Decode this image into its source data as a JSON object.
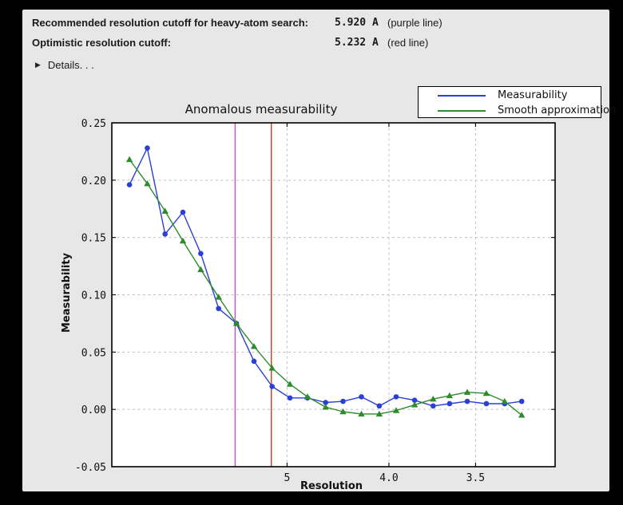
{
  "header": {
    "row1": {
      "label": "Recommended resolution cutoff for heavy-atom search:",
      "value": "5.920 A",
      "note": "(purple line)"
    },
    "row2": {
      "label": "Optimistic resolution cutoff:",
      "value": "5.232 A",
      "note": "(red line)"
    },
    "details": {
      "icon": "right-triangle",
      "icon_glyph": "▶",
      "label": "Details. . ."
    }
  },
  "chart_data": {
    "type": "line",
    "title": "Anomalous measurability",
    "xlabel": "Resolution",
    "ylabel": "Measurability",
    "grid": true,
    "legend_position": "top-right",
    "x_axis": {
      "scale": "1/d^2",
      "unit": "Angstrom",
      "tick_d": [
        5,
        4.0,
        3.5
      ],
      "tick_labels": [
        "5",
        "4.0",
        "3.5"
      ],
      "s_range": [
        0.0013,
        0.0992
      ]
    },
    "y_axis": {
      "range": [
        -0.05,
        0.25
      ],
      "ticks": [
        0.25,
        0.2,
        0.15,
        0.1,
        0.05,
        0.0,
        -0.05
      ],
      "tick_labels": [
        "0.25",
        "0.20",
        "0.15",
        "0.10",
        "0.05",
        "0.00",
        "-0.05"
      ]
    },
    "x_resolution_A": [
      13.87,
      10.46,
      8.75,
      7.67,
      6.91,
      6.34,
      5.89,
      5.53,
      5.22,
      4.96,
      4.74,
      4.54,
      4.37,
      4.21,
      4.07,
      3.95,
      3.83,
      3.72,
      3.63,
      3.54,
      3.45,
      3.37,
      3.3
    ],
    "series": [
      {
        "name": "Measurability",
        "color": "#2a3fd6",
        "marker": "circle",
        "values": [
          0.196,
          0.228,
          0.153,
          0.172,
          0.136,
          0.088,
          0.075,
          0.042,
          0.02,
          0.01,
          0.01,
          0.006,
          0.007,
          0.011,
          0.003,
          0.011,
          0.008,
          0.003,
          0.005,
          0.007,
          0.005,
          0.005,
          0.007
        ]
      },
      {
        "name": "Smooth approximation",
        "color": "#2e8b2e",
        "marker": "triangle",
        "values": [
          0.218,
          0.197,
          0.173,
          0.147,
          0.122,
          0.098,
          0.075,
          0.055,
          0.036,
          0.022,
          0.011,
          0.002,
          -0.002,
          -0.004,
          -0.004,
          -0.001,
          0.004,
          0.009,
          0.012,
          0.015,
          0.014,
          0.007,
          -0.005
        ]
      }
    ],
    "vlines": [
      {
        "label": "purple line",
        "d": 5.92,
        "color": "#c44ec8"
      },
      {
        "label": "red line",
        "d": 5.232,
        "color": "#cc3d12"
      }
    ]
  },
  "style_colors": {
    "window_bg": "#e7e7e7",
    "plot_bg": "#ffffff",
    "grid": "#bfbfbf",
    "frame": "#000000",
    "text": "#1a1a1a"
  }
}
